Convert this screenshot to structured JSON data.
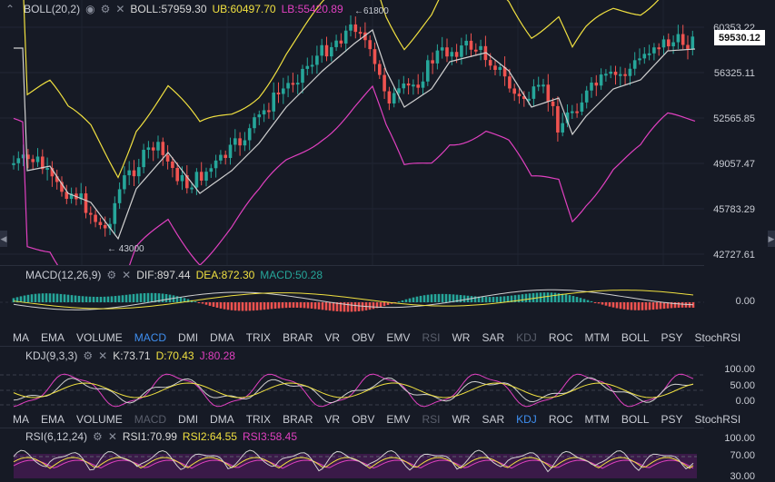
{
  "boll": {
    "name": "BOLL(20,2)",
    "mid": "BOLL:57959.30",
    "ub": "UB:60497.70",
    "lb": "LB:55420.89",
    "high_label": "61800",
    "low_label": "43000",
    "axis": [
      "60353.22",
      "56325.11",
      "52565.85",
      "49057.47",
      "45783.29",
      "42727.61"
    ],
    "current_price": "59530.12"
  },
  "macd": {
    "name": "MACD(12,26,9)",
    "dif": "DIF:897.44",
    "dea": "DEA:872.30",
    "macd": "MACD:50.28",
    "axis": [
      "0.00"
    ]
  },
  "kdj": {
    "name": "KDJ(9,3,3)",
    "k": "K:73.71",
    "d": "D:70.43",
    "j": "J:80.28",
    "axis": [
      "100.00",
      "50.00",
      "0.00"
    ]
  },
  "rsi": {
    "name": "RSI(6,12,24)",
    "rsi1": "RSI1:70.99",
    "rsi2": "RSI2:64.55",
    "rsi3": "RSI3:58.45",
    "axis": [
      "100.00",
      "70.00",
      "30.00"
    ]
  },
  "tabs1": [
    "MA",
    "EMA",
    "VOLUME",
    "MACD",
    "DMI",
    "DMA",
    "TRIX",
    "BRAR",
    "VR",
    "OBV",
    "EMV",
    "RSI",
    "WR",
    "SAR",
    "KDJ",
    "ROC",
    "MTM",
    "BOLL",
    "PSY",
    "StochRSI"
  ],
  "tabs2": [
    "MA",
    "EMA",
    "VOLUME",
    "MACD",
    "DMI",
    "DMA",
    "TRIX",
    "BRAR",
    "VR",
    "OBV",
    "EMV",
    "RSI",
    "WR",
    "SAR",
    "KDJ",
    "ROC",
    "MTM",
    "BOLL",
    "PSY",
    "StochRSI"
  ],
  "colors": {
    "up": "#26a69a",
    "down": "#ef5350",
    "mid": "#d0d0d0",
    "ub": "#f0e040",
    "lb": "#e040c0",
    "accent": "#3f8ff0"
  },
  "icons": [
    "collapse-icon",
    "eye-icon",
    "settings-icon",
    "close-icon"
  ]
}
